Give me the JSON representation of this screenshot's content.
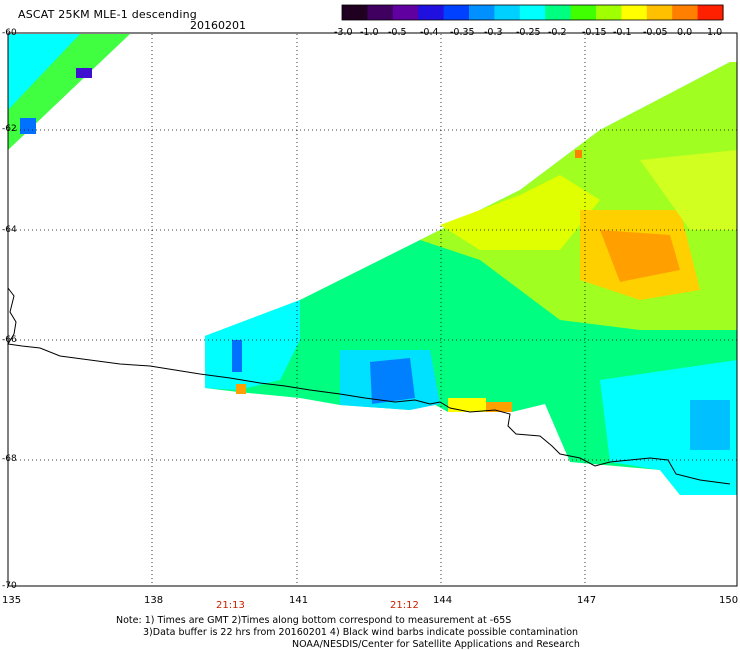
{
  "title": "ASCAT 25KM MLE-1 descending",
  "date": "20160201",
  "colorbar": {
    "ticks": [
      "-3.0",
      "-1.0",
      "-0.5",
      "-0.4",
      "-0.35",
      "-0.3",
      "-0.25",
      "-0.2",
      "-0.15",
      "-0.1",
      "-0.05",
      "0.0",
      "1.0"
    ],
    "colors": [
      "#200020",
      "#400060",
      "#6000a0",
      "#2010e0",
      "#0040ff",
      "#0090ff",
      "#00d0ff",
      "#00ffff",
      "#00ff80",
      "#40ff00",
      "#a0ff00",
      "#ffff00",
      "#ffc000",
      "#ff8000",
      "#ff2000"
    ]
  },
  "axes": {
    "lat_ticks": [
      "-60",
      "-62",
      "-64",
      "-66",
      "-68",
      "-70"
    ],
    "lon_ticks": [
      "135",
      "138",
      "141",
      "144",
      "147",
      "150"
    ]
  },
  "time_labels": [
    "21:13",
    "21:12"
  ],
  "notes": {
    "line1": "Note: 1) Times are GMT 2)Times along bottom correspond to measurement at -65S",
    "line2": "3)Data buffer is 22 hrs from 20160201 4) Black wind barbs indicate possible contamination",
    "line3": "NOAA/NESDIS/Center for Satellite Applications and Research"
  }
}
